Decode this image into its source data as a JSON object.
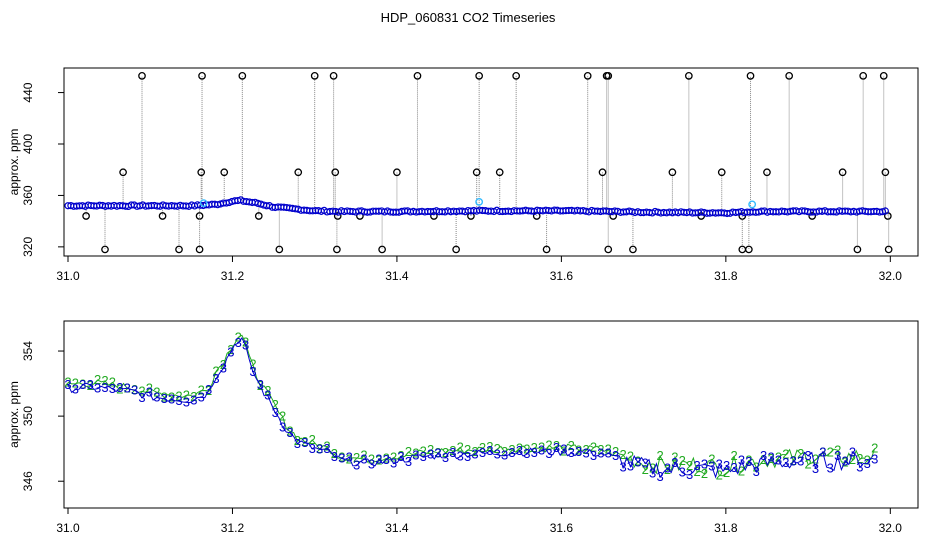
{
  "title": "HDP_060831  CO2 Timeseries",
  "colors": {
    "raw": "#000000",
    "flag": "#33bbff",
    "series2": "#22aa22",
    "series3": "#0000cc",
    "line": "#888888"
  },
  "chart_data": [
    {
      "type": "scatter",
      "title": "HDP_060831  CO2 Timeseries",
      "ylabel": "approx. ppm",
      "xlabel": "",
      "xlim": [
        31.0,
        32.0
      ],
      "ylim": [
        316,
        456
      ],
      "xticks": [
        "31.0",
        "31.2",
        "31.4",
        "31.6",
        "31.8",
        "32.0"
      ],
      "yticks": [
        "320",
        "360",
        "400",
        "440"
      ],
      "xtick_values": [
        31.0,
        31.2,
        31.4,
        31.6,
        31.8,
        32.0
      ],
      "ytick_values": [
        320,
        360,
        400,
        440
      ],
      "baseline": [
        [
          31.0,
          352
        ],
        [
          31.05,
          352
        ],
        [
          31.1,
          352
        ],
        [
          31.15,
          352
        ],
        [
          31.18,
          353
        ],
        [
          31.2,
          355.5
        ],
        [
          31.21,
          356
        ],
        [
          31.23,
          354
        ],
        [
          31.25,
          351
        ],
        [
          31.3,
          348
        ],
        [
          31.33,
          347.5
        ],
        [
          31.4,
          347.5
        ],
        [
          31.5,
          348
        ],
        [
          31.6,
          348
        ],
        [
          31.66,
          347.5
        ],
        [
          31.7,
          347
        ],
        [
          31.8,
          346.5
        ],
        [
          31.84,
          347.5
        ],
        [
          31.9,
          347.5
        ],
        [
          31.99,
          347.5
        ]
      ],
      "spikes_high": [
        31.09,
        31.163,
        31.212,
        31.3,
        31.323,
        31.425,
        31.5,
        31.545,
        31.632,
        31.655,
        31.657,
        31.755,
        31.83,
        31.877,
        31.967,
        31.992
      ],
      "spikes_mid": [
        31.067,
        31.162,
        31.19,
        31.28,
        31.325,
        31.4,
        31.497,
        31.525,
        31.65,
        31.735,
        31.795,
        31.85,
        31.942,
        31.994
      ],
      "spikes_low": [
        31.022,
        31.115,
        31.16,
        31.232,
        31.328,
        31.355,
        31.445,
        31.49,
        31.57,
        31.663,
        31.77,
        31.82,
        31.905,
        31.997
      ],
      "spikes_minor": [
        31.045,
        31.135,
        31.16,
        31.257,
        31.327,
        31.382,
        31.472,
        31.582,
        31.657,
        31.687,
        31.82,
        31.828,
        31.96,
        31.998
      ],
      "flagged": [
        [
          31.165,
          354
        ],
        [
          31.5,
          355
        ],
        [
          31.832,
          353
        ]
      ],
      "spike_values": {
        "high": 453,
        "mid": 378,
        "low": 344,
        "minor": 318
      }
    },
    {
      "type": "scatter",
      "ylabel": "approx. ppm",
      "xlabel": "",
      "xlim": [
        31.0,
        32.0
      ],
      "ylim": [
        344.6,
        355.6
      ],
      "xticks": [
        "31.0",
        "31.2",
        "31.4",
        "31.6",
        "31.8",
        "32.0"
      ],
      "yticks": [
        "346",
        "350",
        "354"
      ],
      "xtick_values": [
        31.0,
        31.2,
        31.4,
        31.6,
        31.8,
        32.0
      ],
      "ytick_values": [
        346,
        350,
        354
      ],
      "series": [
        {
          "symbol": "2",
          "values": []
        },
        {
          "symbol": "3",
          "values": []
        }
      ],
      "trend": [
        [
          31.0,
          351.8
        ],
        [
          31.03,
          351.9
        ],
        [
          31.06,
          351.7
        ],
        [
          31.08,
          351.6
        ],
        [
          31.1,
          351.3
        ],
        [
          31.12,
          351.2
        ],
        [
          31.15,
          351.1
        ],
        [
          31.17,
          351.5
        ],
        [
          31.18,
          352.6
        ],
        [
          31.19,
          353.3
        ],
        [
          31.2,
          354.3
        ],
        [
          31.21,
          355.0
        ],
        [
          31.215,
          354.5
        ],
        [
          31.22,
          353.4
        ],
        [
          31.23,
          352.3
        ],
        [
          31.24,
          351.4
        ],
        [
          31.25,
          350.6
        ],
        [
          31.26,
          349.7
        ],
        [
          31.27,
          349.0
        ],
        [
          31.28,
          348.5
        ],
        [
          31.3,
          348.1
        ],
        [
          31.32,
          347.8
        ],
        [
          31.33,
          347.4
        ],
        [
          31.36,
          347.2
        ],
        [
          31.4,
          347.4
        ],
        [
          31.45,
          347.7
        ],
        [
          31.5,
          347.8
        ],
        [
          31.55,
          347.9
        ],
        [
          31.6,
          347.9
        ],
        [
          31.65,
          347.8
        ],
        [
          31.66,
          347.6
        ],
        [
          31.68,
          347.3
        ],
        [
          31.7,
          347.0
        ],
        [
          31.73,
          346.8
        ],
        [
          31.76,
          346.9
        ],
        [
          31.78,
          346.8
        ],
        [
          31.8,
          346.7
        ],
        [
          31.82,
          347.0
        ],
        [
          31.85,
          347.2
        ],
        [
          31.88,
          347.3
        ],
        [
          31.9,
          347.4
        ],
        [
          31.93,
          347.3
        ],
        [
          31.96,
          347.4
        ],
        [
          31.99,
          347.4
        ]
      ]
    }
  ]
}
